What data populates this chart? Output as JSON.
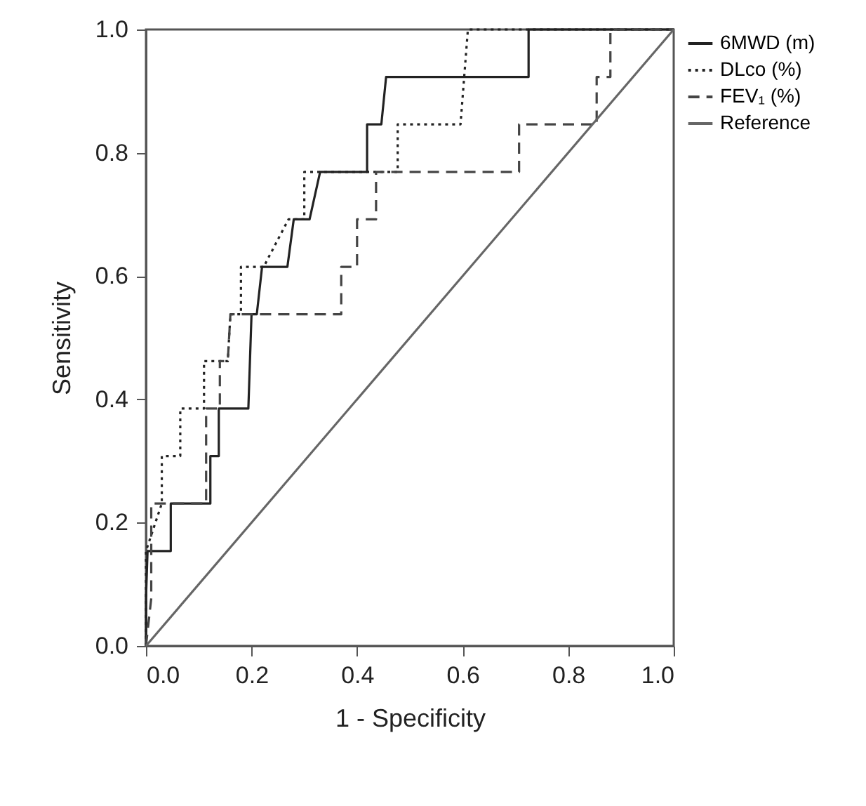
{
  "chart_data": {
    "type": "line",
    "xlabel": "1 - Specificity",
    "ylabel": "Sensitivity",
    "series": [
      {
        "name": "6MWD (m)",
        "color": "#222222",
        "line_style": "solid",
        "x": [
          0,
          0,
          0.003,
          0.047,
          0.047,
          0.122,
          0.122,
          0.138,
          0.138,
          0.194,
          0.2,
          0.21,
          0.22,
          0.268,
          0.28,
          0.31,
          0.33,
          0.419,
          0.419,
          0.446,
          0.455,
          0.725,
          0.725,
          1
        ],
        "values": [
          0,
          0.077,
          0.154,
          0.154,
          0.231,
          0.231,
          0.308,
          0.308,
          0.385,
          0.385,
          0.538,
          0.538,
          0.615,
          0.615,
          0.692,
          0.692,
          0.769,
          0.769,
          0.846,
          0.846,
          0.923,
          0.923,
          1,
          1
        ]
      },
      {
        "name": "DLco (%)",
        "color": "#222222",
        "line_style": "dotted",
        "x": [
          0,
          0,
          0.03,
          0.03,
          0.065,
          0.065,
          0.11,
          0.11,
          0.155,
          0.16,
          0.18,
          0.18,
          0.223,
          0.27,
          0.3,
          0.3,
          0.477,
          0.477,
          0.596,
          0.61,
          1
        ],
        "values": [
          0,
          0.154,
          0.231,
          0.308,
          0.308,
          0.385,
          0.385,
          0.462,
          0.462,
          0.538,
          0.538,
          0.615,
          0.615,
          0.692,
          0.692,
          0.769,
          0.769,
          0.846,
          0.846,
          1,
          1
        ]
      },
      {
        "name": "FEV₁ (%)",
        "color": "#444444",
        "line_style": "dashed",
        "x": [
          0,
          0.01,
          0.01,
          0.114,
          0.114,
          0.14,
          0.14,
          0.155,
          0.16,
          0.37,
          0.37,
          0.4,
          0.4,
          0.436,
          0.436,
          0.707,
          0.707,
          0.854,
          0.854,
          0.88,
          0.88,
          1
        ],
        "values": [
          0,
          0.077,
          0.231,
          0.231,
          0.385,
          0.385,
          0.462,
          0.462,
          0.538,
          0.538,
          0.615,
          0.615,
          0.692,
          0.692,
          0.769,
          0.769,
          0.846,
          0.846,
          0.923,
          0.923,
          1,
          1
        ]
      },
      {
        "name": "Reference",
        "color": "#666666",
        "line_style": "solid",
        "x": [
          0,
          1
        ],
        "values": [
          0,
          1
        ]
      }
    ],
    "xlim": [
      0,
      1
    ],
    "ylim": [
      0,
      1
    ],
    "xticks": [
      {
        "value": 0,
        "label": "0.0"
      },
      {
        "value": 0.2,
        "label": "0.2"
      },
      {
        "value": 0.4,
        "label": "0.4"
      },
      {
        "value": 0.6,
        "label": "0.6"
      },
      {
        "value": 0.8,
        "label": "0.8"
      },
      {
        "value": 1,
        "label": "1.0"
      }
    ],
    "yticks": [
      {
        "value": 0,
        "label": "0.0"
      },
      {
        "value": 0.2,
        "label": "0.2"
      },
      {
        "value": 0.4,
        "label": "0.4"
      },
      {
        "value": 0.6,
        "label": "0.6"
      },
      {
        "value": 0.8,
        "label": "0.8"
      },
      {
        "value": 1,
        "label": "1.0"
      }
    ],
    "grid": false,
    "legend": "top right",
    "marker": "none"
  }
}
